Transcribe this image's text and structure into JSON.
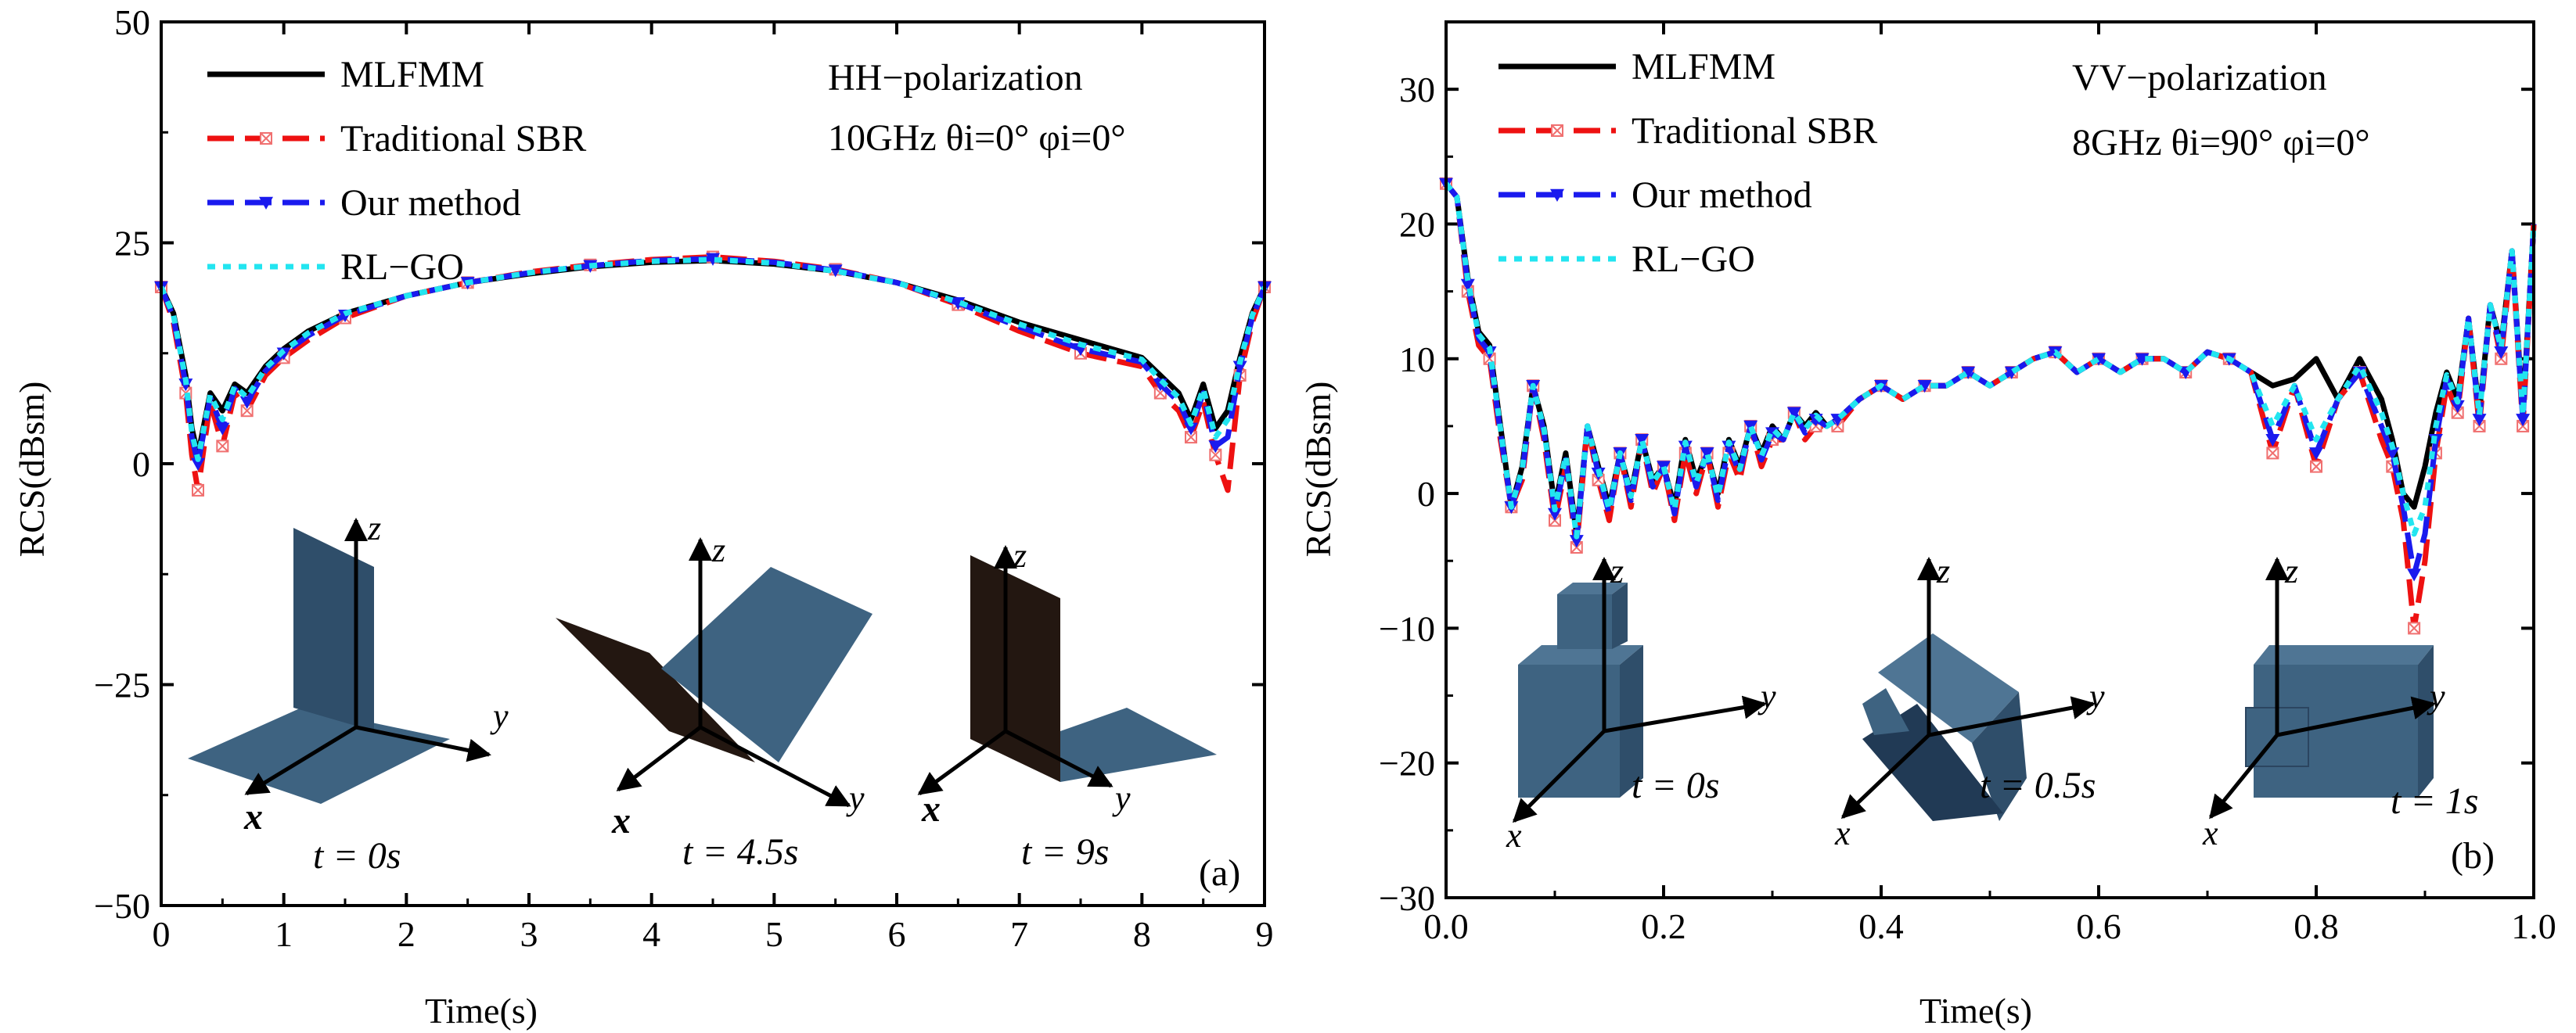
{
  "chart_data": [
    {
      "type": "line",
      "panel": "(a)",
      "xlabel": "Time(s)",
      "ylabel": "RCS(dBsm)",
      "xlim": [
        0,
        9
      ],
      "ylim": [
        -50,
        50
      ],
      "xticks": [
        0,
        1,
        2,
        3,
        4,
        5,
        6,
        7,
        8,
        9
      ],
      "xtick_labels": [
        "0",
        "1",
        "2",
        "3",
        "4",
        "5",
        "6",
        "7",
        "8",
        "9"
      ],
      "yticks": [
        -50,
        -25,
        0,
        25,
        50
      ],
      "ytick_labels": [
        "−50",
        "−25",
        "0",
        "25",
        "50"
      ],
      "annotation_lines": [
        "HH−polarization",
        "10GHz  θi=0°  φi=0°"
      ],
      "insets": [
        {
          "caption": "t = 0s",
          "axes": [
            "z",
            "y",
            "x"
          ]
        },
        {
          "caption": "t = 4.5s",
          "axes": [
            "z",
            "y",
            "x"
          ]
        },
        {
          "caption": "t = 9s",
          "axes": [
            "z",
            "y",
            "x"
          ]
        }
      ],
      "legend_location": "top-left",
      "series": [
        {
          "name": "MLFMM",
          "color": "#000000",
          "style": "solid",
          "marker": "none",
          "x": [
            0,
            0.1,
            0.2,
            0.25,
            0.3,
            0.4,
            0.5,
            0.6,
            0.7,
            0.85,
            1,
            1.2,
            1.5,
            2,
            2.5,
            3,
            3.5,
            4,
            4.5,
            5,
            5.5,
            6,
            6.5,
            7,
            7.5,
            8,
            8.15,
            8.3,
            8.4,
            8.5,
            8.6,
            8.7,
            8.8,
            8.9,
            9
          ],
          "y": [
            20,
            17,
            10,
            4,
            1,
            8,
            6,
            9,
            8,
            11,
            13,
            15,
            17,
            19,
            20.5,
            21.5,
            22.3,
            22.8,
            23,
            22.6,
            21.8,
            20.5,
            18.5,
            16,
            14,
            12,
            10,
            8,
            5,
            9,
            4,
            6,
            12,
            17,
            20
          ]
        },
        {
          "name": "Traditional SBR",
          "color": "#ee1111",
          "style": "dashed",
          "marker": "x-square",
          "x": [
            0,
            0.1,
            0.2,
            0.25,
            0.3,
            0.4,
            0.5,
            0.6,
            0.7,
            0.85,
            1,
            1.2,
            1.5,
            2,
            2.5,
            3,
            3.5,
            4,
            4.5,
            5,
            5.5,
            6,
            6.5,
            7,
            7.5,
            8,
            8.15,
            8.3,
            8.4,
            8.5,
            8.6,
            8.7,
            8.8,
            8.9,
            9
          ],
          "y": [
            20,
            16,
            8,
            1,
            -3,
            7,
            2,
            8,
            6,
            10,
            12,
            14,
            16.5,
            19,
            20.5,
            21.7,
            22.5,
            23.1,
            23.4,
            22.9,
            22,
            20.5,
            18,
            15,
            12.5,
            11,
            8,
            6,
            3,
            7,
            1,
            -3,
            10,
            16,
            20
          ]
        },
        {
          "name": "Our method",
          "color": "#1a1aee",
          "style": "dashed",
          "marker": "triangle-down",
          "x": [
            0,
            0.1,
            0.2,
            0.25,
            0.3,
            0.4,
            0.5,
            0.6,
            0.7,
            0.85,
            1,
            1.2,
            1.5,
            2,
            2.5,
            3,
            3.5,
            4,
            4.5,
            5,
            5.5,
            6,
            6.5,
            7,
            7.5,
            8,
            8.15,
            8.3,
            8.4,
            8.5,
            8.6,
            8.7,
            8.8,
            8.9,
            9
          ],
          "y": [
            20,
            16.5,
            9,
            3,
            0,
            7.5,
            4,
            8.5,
            7,
            10.5,
            12.5,
            14.5,
            16.8,
            19,
            20.5,
            21.6,
            22.4,
            23,
            23.2,
            22.8,
            21.9,
            20.5,
            18.2,
            15.5,
            13,
            11.5,
            9,
            7,
            4,
            8,
            2,
            3,
            11,
            16.5,
            20
          ]
        },
        {
          "name": "RL−GO",
          "color": "#22e5f0",
          "style": "dotted",
          "marker": "none",
          "x": [
            0,
            0.1,
            0.2,
            0.25,
            0.3,
            0.4,
            0.5,
            0.6,
            0.7,
            0.85,
            1,
            1.2,
            1.5,
            2,
            2.5,
            3,
            3.5,
            4,
            4.5,
            5,
            5.5,
            6,
            6.5,
            7,
            7.5,
            8,
            8.15,
            8.3,
            8.4,
            8.5,
            8.6,
            8.7,
            8.8,
            8.9,
            9
          ],
          "y": [
            20,
            16.8,
            9.5,
            3.5,
            0.5,
            7.8,
            5,
            8.8,
            7.5,
            10.8,
            12.8,
            14.8,
            17,
            19,
            20.5,
            21.6,
            22.4,
            22.9,
            23.1,
            22.7,
            21.8,
            20.5,
            18.3,
            15.8,
            13.5,
            11.8,
            9.5,
            7.5,
            4.5,
            8.5,
            3,
            5,
            11.5,
            16.8,
            20
          ]
        }
      ]
    },
    {
      "type": "line",
      "panel": "(b)",
      "xlabel": "Time(s)",
      "ylabel": "RCS(dBsm)",
      "xlim": [
        0,
        1
      ],
      "ylim": [
        -30,
        35
      ],
      "xticks": [
        0,
        0.2,
        0.4,
        0.6,
        0.8,
        1.0
      ],
      "xtick_labels": [
        "0.0",
        "0.2",
        "0.4",
        "0.6",
        "0.8",
        "1.0"
      ],
      "yticks": [
        -30,
        -20,
        -10,
        0,
        10,
        20,
        30
      ],
      "ytick_labels": [
        "−30",
        "−20",
        "−10",
        "0",
        "10",
        "20",
        "30"
      ],
      "annotation_lines": [
        "VV−polarization",
        "8GHz  θi=90°  φi=0°"
      ],
      "insets": [
        {
          "caption": "t = 0s",
          "axes": [
            "z",
            "y",
            "x"
          ]
        },
        {
          "caption": "t = 0.5s",
          "axes": [
            "z",
            "y",
            "x"
          ]
        },
        {
          "caption": "t = 1s",
          "axes": [
            "z",
            "y",
            "x"
          ]
        }
      ],
      "legend_location": "top-left",
      "series": [
        {
          "name": "MLFMM",
          "color": "#000000",
          "style": "solid",
          "marker": "none",
          "x": [
            0,
            0.01,
            0.02,
            0.03,
            0.04,
            0.05,
            0.06,
            0.07,
            0.08,
            0.09,
            0.1,
            0.11,
            0.12,
            0.13,
            0.14,
            0.15,
            0.16,
            0.17,
            0.18,
            0.19,
            0.2,
            0.21,
            0.22,
            0.23,
            0.24,
            0.25,
            0.26,
            0.27,
            0.28,
            0.29,
            0.3,
            0.31,
            0.32,
            0.33,
            0.34,
            0.35,
            0.36,
            0.38,
            0.4,
            0.42,
            0.44,
            0.46,
            0.48,
            0.5,
            0.52,
            0.54,
            0.56,
            0.58,
            0.6,
            0.62,
            0.64,
            0.66,
            0.68,
            0.7,
            0.72,
            0.74,
            0.76,
            0.78,
            0.8,
            0.82,
            0.84,
            0.86,
            0.87,
            0.88,
            0.89,
            0.9,
            0.91,
            0.92,
            0.93,
            0.94,
            0.95,
            0.96,
            0.97,
            0.98,
            0.99,
            1.0
          ],
          "y": [
            23,
            22,
            16,
            12,
            11,
            5,
            -1,
            2,
            8,
            5,
            -1,
            3,
            -3,
            5,
            2,
            -1,
            3,
            0,
            4,
            1,
            2,
            -1,
            4,
            1,
            3,
            0,
            4,
            2,
            5,
            3,
            5,
            4,
            6,
            5,
            6,
            5,
            5.5,
            7,
            8,
            7,
            8,
            8,
            9,
            8,
            9,
            10,
            10.5,
            9,
            10,
            9,
            10,
            10,
            9,
            10.5,
            10,
            9,
            8,
            8.5,
            10,
            7,
            10,
            7,
            4,
            0,
            -1,
            2,
            6,
            9,
            7,
            13,
            6,
            14,
            11,
            18,
            6,
            20
          ]
        },
        {
          "name": "Traditional SBR",
          "color": "#ee1111",
          "style": "dashed",
          "marker": "x-square",
          "x": [
            0,
            0.01,
            0.02,
            0.03,
            0.04,
            0.05,
            0.06,
            0.07,
            0.08,
            0.09,
            0.1,
            0.11,
            0.12,
            0.13,
            0.14,
            0.15,
            0.16,
            0.17,
            0.18,
            0.19,
            0.2,
            0.21,
            0.22,
            0.23,
            0.24,
            0.25,
            0.26,
            0.27,
            0.28,
            0.29,
            0.3,
            0.31,
            0.32,
            0.33,
            0.34,
            0.35,
            0.36,
            0.38,
            0.4,
            0.42,
            0.44,
            0.46,
            0.48,
            0.5,
            0.52,
            0.54,
            0.56,
            0.58,
            0.6,
            0.62,
            0.64,
            0.66,
            0.68,
            0.7,
            0.72,
            0.74,
            0.76,
            0.78,
            0.8,
            0.82,
            0.84,
            0.86,
            0.87,
            0.88,
            0.89,
            0.9,
            0.91,
            0.92,
            0.93,
            0.94,
            0.95,
            0.96,
            0.97,
            0.98,
            0.99,
            1.0
          ],
          "y": [
            23,
            22,
            15,
            11,
            10,
            4,
            -1,
            1,
            8,
            4,
            -2,
            2,
            -4,
            5,
            1,
            -2,
            3,
            -1,
            4,
            0,
            2,
            -2,
            3,
            0,
            3,
            -1,
            3,
            1,
            5,
            2,
            4,
            4,
            6,
            4,
            5,
            5,
            5,
            7,
            8,
            7,
            8,
            8,
            9,
            8,
            9,
            10,
            10.5,
            9,
            10,
            9,
            10,
            10,
            9,
            10.5,
            10,
            9,
            3,
            8,
            2,
            7,
            9,
            4,
            2,
            -2,
            -10,
            -5,
            3,
            8,
            6,
            13,
            5,
            14,
            10,
            18,
            5,
            20
          ]
        },
        {
          "name": "Our method",
          "color": "#1a1aee",
          "style": "dashed",
          "marker": "triangle-down",
          "x": [
            0,
            0.01,
            0.02,
            0.03,
            0.04,
            0.05,
            0.06,
            0.07,
            0.08,
            0.09,
            0.1,
            0.11,
            0.12,
            0.13,
            0.14,
            0.15,
            0.16,
            0.17,
            0.18,
            0.19,
            0.2,
            0.21,
            0.22,
            0.23,
            0.24,
            0.25,
            0.26,
            0.27,
            0.28,
            0.29,
            0.3,
            0.31,
            0.32,
            0.33,
            0.34,
            0.35,
            0.36,
            0.38,
            0.4,
            0.42,
            0.44,
            0.46,
            0.48,
            0.5,
            0.52,
            0.54,
            0.56,
            0.58,
            0.6,
            0.62,
            0.64,
            0.66,
            0.68,
            0.7,
            0.72,
            0.74,
            0.76,
            0.78,
            0.8,
            0.82,
            0.84,
            0.86,
            0.87,
            0.88,
            0.89,
            0.9,
            0.91,
            0.92,
            0.93,
            0.94,
            0.95,
            0.96,
            0.97,
            0.98,
            0.99,
            1.0
          ],
          "y": [
            23,
            22,
            15.5,
            11.5,
            10.5,
            4.5,
            -1,
            1.5,
            8,
            4.5,
            -1.5,
            2.5,
            -3.5,
            5,
            1.5,
            -1.5,
            3,
            -0.5,
            4,
            0.5,
            2,
            -1.5,
            3.5,
            0.5,
            3,
            -0.5,
            3.5,
            1.5,
            5,
            2.5,
            4.5,
            4,
            6,
            4.5,
            5.5,
            5,
            5.5,
            7,
            8,
            7,
            8,
            8,
            9,
            8,
            9,
            10,
            10.5,
            9,
            10,
            9,
            10,
            10,
            9,
            10.5,
            10,
            9,
            4,
            8,
            3,
            7,
            9,
            5,
            3,
            -1,
            -6,
            -3,
            4,
            8.5,
            6.5,
            13,
            5.5,
            14,
            10.5,
            18,
            5.5,
            20
          ]
        },
        {
          "name": "RL−GO",
          "color": "#22e5f0",
          "style": "dotted",
          "marker": "none",
          "x": [
            0,
            0.01,
            0.02,
            0.03,
            0.04,
            0.05,
            0.06,
            0.07,
            0.08,
            0.09,
            0.1,
            0.11,
            0.12,
            0.13,
            0.14,
            0.15,
            0.16,
            0.17,
            0.18,
            0.19,
            0.2,
            0.21,
            0.22,
            0.23,
            0.24,
            0.25,
            0.26,
            0.27,
            0.28,
            0.29,
            0.3,
            0.31,
            0.32,
            0.33,
            0.34,
            0.35,
            0.36,
            0.38,
            0.4,
            0.42,
            0.44,
            0.46,
            0.48,
            0.5,
            0.52,
            0.54,
            0.56,
            0.58,
            0.6,
            0.62,
            0.64,
            0.66,
            0.68,
            0.7,
            0.72,
            0.74,
            0.76,
            0.78,
            0.8,
            0.82,
            0.84,
            0.86,
            0.87,
            0.88,
            0.89,
            0.9,
            0.91,
            0.92,
            0.93,
            0.94,
            0.95,
            0.96,
            0.97,
            0.98,
            0.99,
            1.0
          ],
          "y": [
            23,
            22,
            15.8,
            11.8,
            10.8,
            4.8,
            -1,
            1.8,
            8,
            4.8,
            -1.2,
            2.8,
            -3.2,
            5,
            1.8,
            -1.2,
            3,
            -0.2,
            4,
            0.8,
            2,
            -1.2,
            3.8,
            0.8,
            3,
            -0.2,
            3.8,
            1.8,
            5,
            2.8,
            4.8,
            4,
            6,
            4.8,
            5.8,
            5,
            5.5,
            7,
            8,
            7,
            8,
            8,
            9,
            8,
            9,
            10,
            10.5,
            9,
            10,
            9,
            10,
            10,
            9,
            10.5,
            10,
            9,
            5,
            8,
            4,
            7,
            9.5,
            6,
            3.5,
            0,
            -3,
            -1,
            5,
            8.8,
            6.8,
            13,
            5.8,
            14,
            10.8,
            18,
            5.8,
            20
          ]
        }
      ]
    }
  ]
}
